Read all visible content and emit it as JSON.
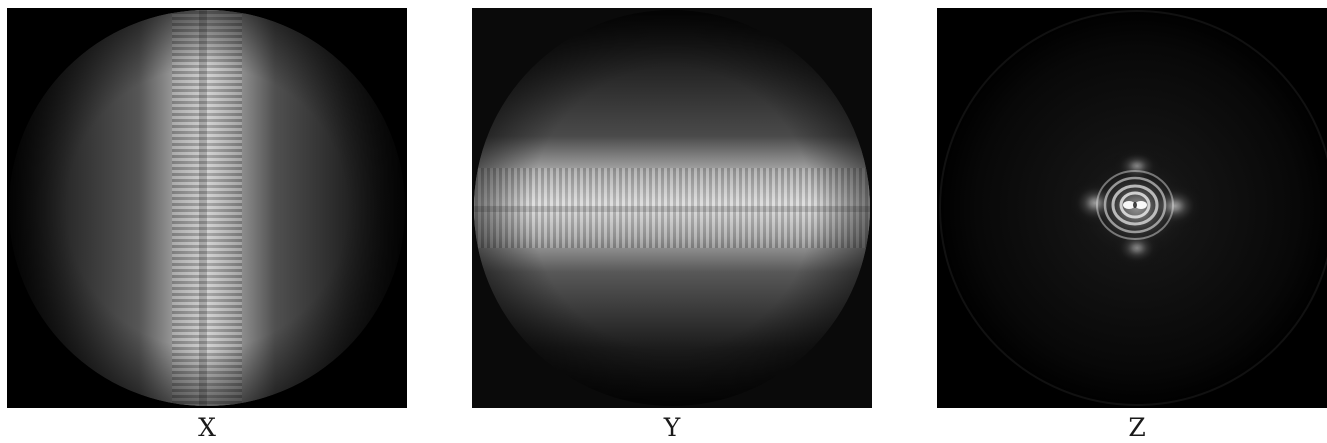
{
  "panels": [
    {
      "label": "X",
      "image": "vertical-fringe-intensity-pattern"
    },
    {
      "label": "Y",
      "image": "horizontal-fringe-intensity-pattern"
    },
    {
      "label": "Z",
      "image": "central-ring-intensity-pattern"
    }
  ]
}
